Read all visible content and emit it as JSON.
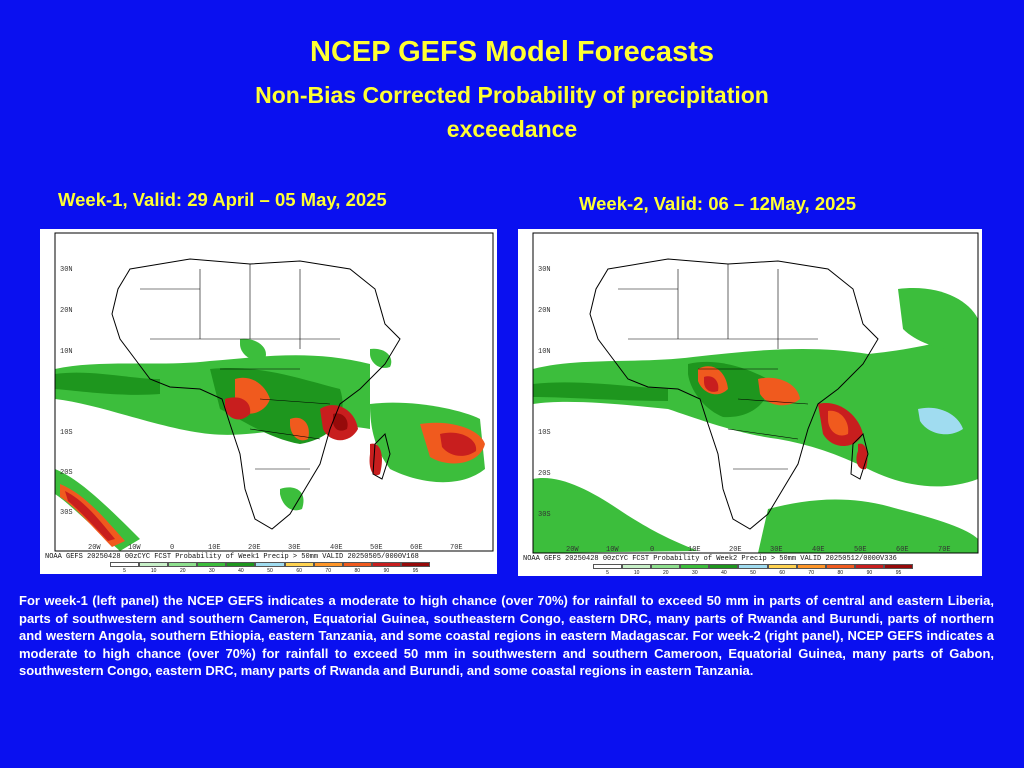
{
  "header": {
    "title": "NCEP GEFS Model Forecasts",
    "subtitle": "Non-Bias Corrected Probability of precipitation exceedance"
  },
  "panels": [
    {
      "heading": "Week-1, Valid: 29 April – 05 May, 2025",
      "caption": "NOAA GEFS 20250428 00zCYC FCST Probability of Week1 Precip > 50mm  VALID 20250505/0000V168",
      "lat_labels": [
        "30N",
        "20N",
        "10N",
        "10S",
        "20S",
        "30S"
      ],
      "lon_labels": [
        "20W",
        "10W",
        "0",
        "10E",
        "20E",
        "30E",
        "40E",
        "50E",
        "60E",
        "70E"
      ]
    },
    {
      "heading": "Week-2, Valid: 06 – 12May, 2025",
      "caption": "NOAA GEFS 20250428 00zCYC FCST Probability of Week2 Precip > 50mm  VALID 20250512/0000V336",
      "lat_labels": [
        "30N",
        "20N",
        "10N",
        "10S",
        "20S",
        "30S"
      ],
      "lon_labels": [
        "20W",
        "10W",
        "0",
        "10E",
        "20E",
        "30E",
        "40E",
        "50E",
        "60E",
        "70E"
      ]
    }
  ],
  "legend": {
    "ticks": [
      "5",
      "10",
      "20",
      "30",
      "40",
      "50",
      "60",
      "70",
      "80",
      "90",
      "95"
    ],
    "colors": [
      "#ffffff",
      "#c8f0c8",
      "#8ee08e",
      "#3cbe3c",
      "#1e961e",
      "#a0dcf0",
      "#ffd250",
      "#ff9628",
      "#f05a1e",
      "#c81e1e",
      "#960a0a"
    ]
  },
  "description": "For week-1 (left panel) the NCEP GEFS indicates a moderate to high chance (over 70%) for rainfall to exceed 50 mm in parts of central and eastern Liberia, parts of southwestern and southern Cameron, Equatorial Guinea, southeastern Congo, eastern DRC, many parts of Rwanda and Burundi, parts of northern and western Angola, southern Ethiopia, eastern Tanzania, and some coastal regions in eastern Madagascar. For week-2 (right panel), NCEP GEFS indicates a moderate to high chance (over 70%) for rainfall to exceed 50 mm in southwestern and southern Cameroon, Equatorial Guinea, many parts of Gabon, southwestern Congo, eastern DRC, many parts of Rwanda and Burundi, and some coastal regions in eastern Tanzania."
}
